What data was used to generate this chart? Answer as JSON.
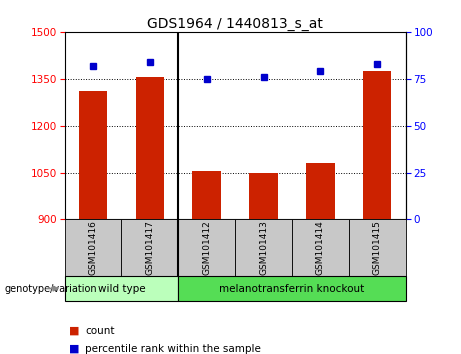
{
  "title": "GDS1964 / 1440813_s_at",
  "samples": [
    "GSM101416",
    "GSM101417",
    "GSM101412",
    "GSM101413",
    "GSM101414",
    "GSM101415"
  ],
  "counts": [
    1310,
    1355,
    1055,
    1050,
    1080,
    1375
  ],
  "percentiles": [
    82,
    84,
    75,
    76,
    79,
    83
  ],
  "group_labels": [
    "wild type",
    "melanotransferrin knockout"
  ],
  "ylim_left": [
    900,
    1500
  ],
  "ylim_right": [
    0,
    100
  ],
  "yticks_left": [
    900,
    1050,
    1200,
    1350,
    1500
  ],
  "yticks_right": [
    0,
    25,
    50,
    75,
    100
  ],
  "bar_color": "#cc2200",
  "dot_color": "#0000cc",
  "group_bg_color": "#c8c8c8",
  "group1_fill": "#bbffbb",
  "group2_fill": "#55dd55",
  "legend_items": [
    "count",
    "percentile rank within the sample"
  ]
}
